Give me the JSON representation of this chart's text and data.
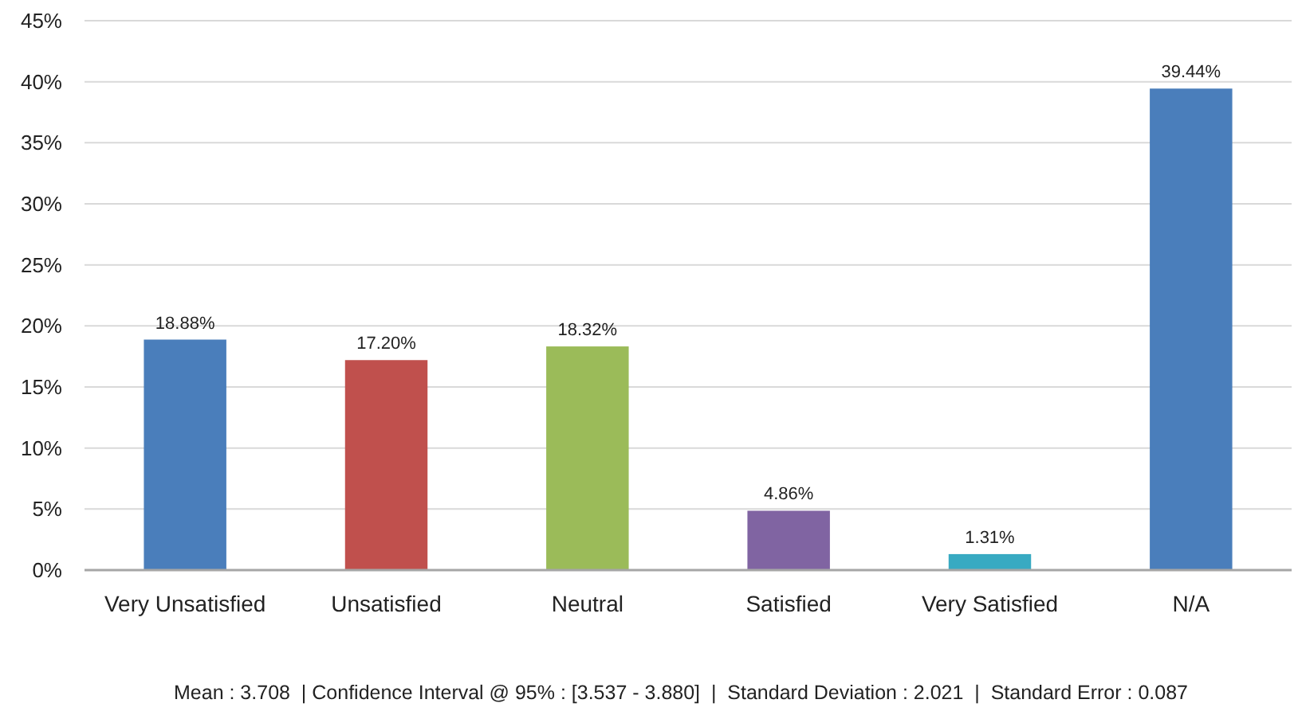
{
  "chart_data": {
    "type": "bar",
    "categories": [
      "Very Unsatisfied",
      "Unsatisfied",
      "Neutral",
      "Satisfied",
      "Very Satisfied",
      "N/A"
    ],
    "values": [
      18.88,
      17.2,
      18.32,
      4.86,
      1.31,
      39.44
    ],
    "colors": [
      "#4a7ebb",
      "#c0504d",
      "#9bbb59",
      "#8064a2",
      "#38aac2",
      "#4a7ebb"
    ],
    "value_labels": [
      "18.88%",
      "17.20%",
      "18.32%",
      "4.86%",
      "1.31%",
      "39.44%"
    ],
    "ylim": [
      0,
      45
    ],
    "yticks": [
      {
        "value": 0,
        "label": "0%"
      },
      {
        "value": 5,
        "label": "5%"
      },
      {
        "value": 10,
        "label": "10%"
      },
      {
        "value": 15,
        "label": "15%"
      },
      {
        "value": 20,
        "label": "20%"
      },
      {
        "value": 25,
        "label": "25%"
      },
      {
        "value": 30,
        "label": "30%"
      },
      {
        "value": 35,
        "label": "35%"
      },
      {
        "value": 40,
        "label": "40%"
      },
      {
        "value": 45,
        "label": "45%"
      }
    ],
    "grid": "y",
    "annotations": [
      "Mean : 3.708  | Confidence Interval @ 95% : [3.537 - 3.880]  |  Standard Deviation : 2.021  |  Standard Error : 0.087"
    ]
  }
}
